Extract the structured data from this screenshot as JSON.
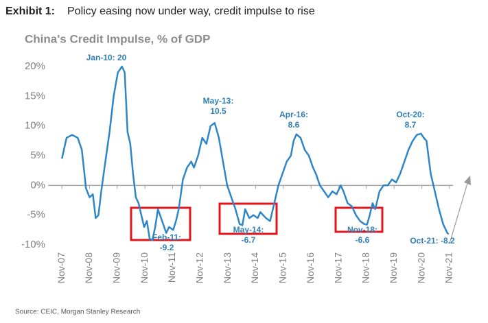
{
  "chart_data": {
    "type": "line",
    "title_label": "Exhibit 1:",
    "title": "Policy easing now under way, credit impulse to rise",
    "subtitle": "China's Credit Impulse, % of GDP",
    "source": "Source: CEIC, Morgan Stanley Research",
    "xlim": [
      2007.33,
      2022.08
    ],
    "ylim": [
      -10,
      20
    ],
    "xticks": [
      {
        "value": 2007.83,
        "label": "Nov-07"
      },
      {
        "value": 2008.83,
        "label": "Nov-08"
      },
      {
        "value": 2009.83,
        "label": "Nov-09"
      },
      {
        "value": 2010.83,
        "label": "Nov-10"
      },
      {
        "value": 2011.83,
        "label": "Nov-11"
      },
      {
        "value": 2012.83,
        "label": "Nov-12"
      },
      {
        "value": 2013.83,
        "label": "Nov-13"
      },
      {
        "value": 2014.83,
        "label": "Nov-14"
      },
      {
        "value": 2015.83,
        "label": "Nov-15"
      },
      {
        "value": 2016.83,
        "label": "Nov-16"
      },
      {
        "value": 2017.83,
        "label": "Nov-17"
      },
      {
        "value": 2018.83,
        "label": "Nov-18"
      },
      {
        "value": 2019.83,
        "label": "Nov-19"
      },
      {
        "value": 2020.83,
        "label": "Nov-20"
      },
      {
        "value": 2021.83,
        "label": "Nov-21"
      }
    ],
    "yticks": [
      {
        "value": 20,
        "label": "20%"
      },
      {
        "value": 15,
        "label": "15%"
      },
      {
        "value": 10,
        "label": "10%"
      },
      {
        "value": 5,
        "label": "5%"
      },
      {
        "value": 0,
        "label": "0%"
      },
      {
        "value": -5,
        "label": "-5%"
      },
      {
        "value": -10,
        "label": "-10%"
      }
    ],
    "grid": false,
    "series": [
      {
        "name": "China's Credit Impulse",
        "color": "#2e86c8",
        "x": [
          2007.83,
          2008.0,
          2008.2,
          2008.4,
          2008.55,
          2008.7,
          2008.83,
          2008.95,
          2009.05,
          2009.15,
          2009.25,
          2009.4,
          2009.55,
          2009.7,
          2009.85,
          2010.0,
          2010.1,
          2010.2,
          2010.3,
          2010.4,
          2010.5,
          2010.6,
          2010.7,
          2010.8,
          2010.9,
          2011.0,
          2011.1,
          2011.2,
          2011.3,
          2011.45,
          2011.6,
          2011.7,
          2011.85,
          2011.95,
          2012.05,
          2012.2,
          2012.35,
          2012.5,
          2012.6,
          2012.75,
          2012.9,
          2013.05,
          2013.2,
          2013.35,
          2013.5,
          2013.65,
          2013.8,
          2013.95,
          2014.1,
          2014.25,
          2014.35,
          2014.45,
          2014.6,
          2014.75,
          2014.9,
          2015.0,
          2015.1,
          2015.2,
          2015.35,
          2015.45,
          2015.55,
          2015.65,
          2015.8,
          2015.95,
          2016.1,
          2016.2,
          2016.3,
          2016.45,
          2016.6,
          2016.75,
          2016.9,
          2017.0,
          2017.15,
          2017.3,
          2017.45,
          2017.6,
          2017.75,
          2017.9,
          2018.0,
          2018.15,
          2018.3,
          2018.45,
          2018.6,
          2018.75,
          2018.85,
          2018.95,
          2019.05,
          2019.15,
          2019.3,
          2019.45,
          2019.6,
          2019.75,
          2019.9,
          2020.05,
          2020.2,
          2020.35,
          2020.5,
          2020.65,
          2020.8,
          2020.9,
          2021.0,
          2021.15,
          2021.3,
          2021.45,
          2021.6,
          2021.75,
          2021.8
        ],
        "values": [
          4.5,
          8,
          8.5,
          8,
          6,
          -0.5,
          -2,
          -1.5,
          -5.5,
          -5,
          -1,
          4,
          9,
          15,
          19,
          20,
          19,
          9,
          7,
          2,
          -2,
          -3,
          -5,
          -7,
          -6,
          -9,
          -9.2,
          -7,
          -4,
          -6,
          -8,
          -7,
          -7.5,
          -6,
          -4,
          1,
          3,
          4,
          3,
          5,
          8,
          7,
          10,
          10.5,
          8,
          4,
          0,
          -2,
          -4,
          -6.5,
          -6.7,
          -4,
          -5.5,
          -5,
          -5.5,
          -4.5,
          -5,
          -5.5,
          -6,
          -4,
          -2,
          0,
          2,
          4,
          5,
          7.5,
          8.6,
          8,
          6,
          5,
          3,
          2,
          0,
          -1,
          -2,
          -1,
          -1.5,
          0,
          -1,
          -3,
          -3.5,
          -5,
          -6,
          -6.5,
          -6.6,
          -5,
          -3,
          -4,
          -1,
          0,
          0,
          1,
          0.5,
          2,
          4,
          6,
          7.5,
          8.5,
          8.7,
          8,
          7.5,
          2,
          -1,
          -4,
          -6.5,
          -8,
          -8.2
        ]
      }
    ],
    "annotations": [
      [
        "Jan-10: 20"
      ],
      [
        "Feb-11:",
        "-9.2"
      ],
      [
        "May-13:",
        "10.5"
      ],
      [
        "May-14:",
        "-6.7"
      ],
      [
        "Apr-16:",
        "8.6"
      ],
      [
        "Nov-18:",
        "-6.6"
      ],
      [
        "Oct-20:",
        "8.7"
      ],
      [
        "Oct-21: -8.2"
      ]
    ]
  }
}
